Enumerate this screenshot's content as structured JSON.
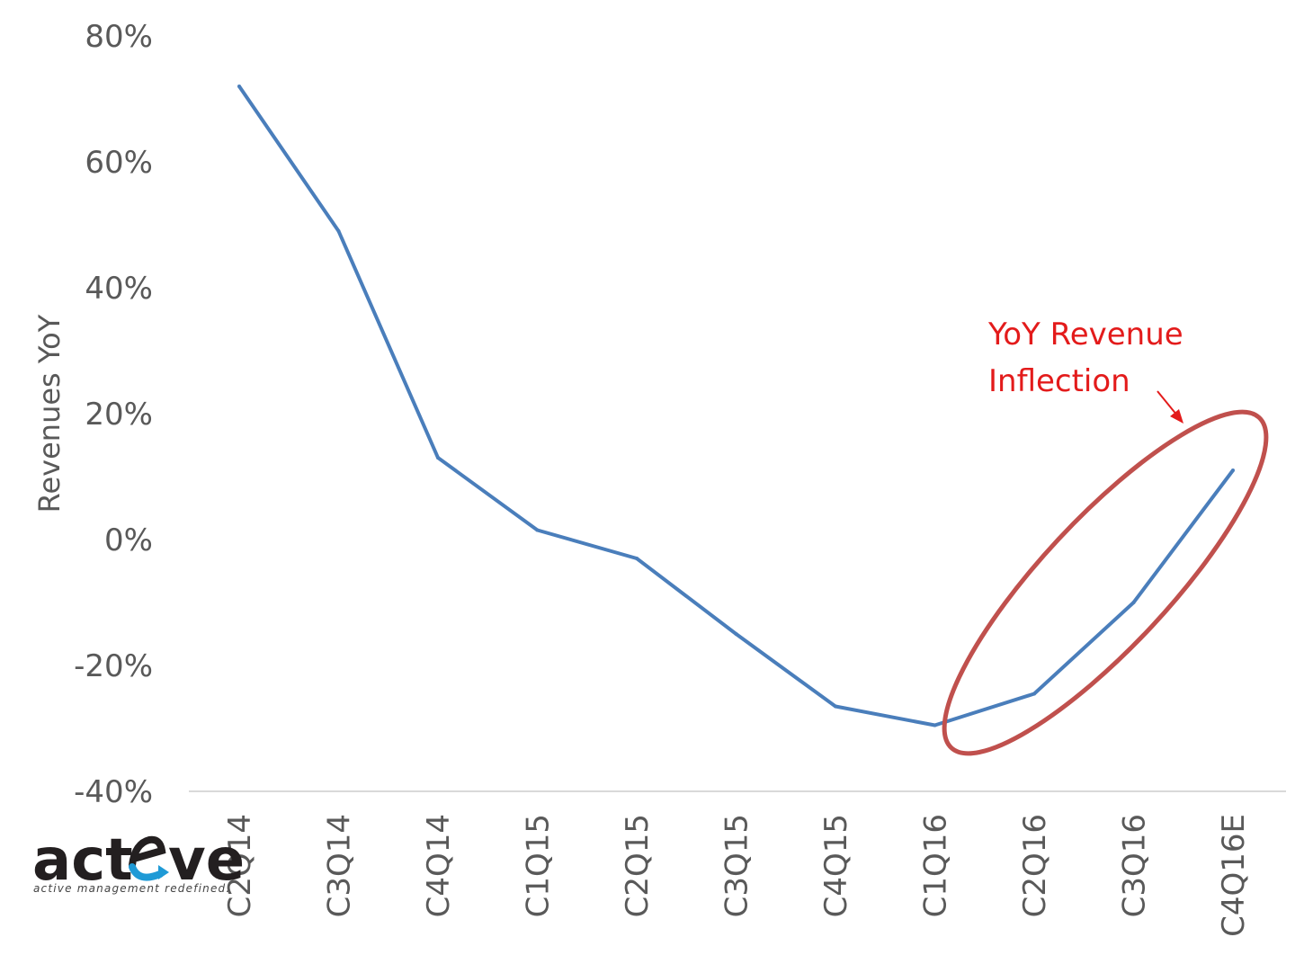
{
  "chart_data": {
    "type": "line",
    "categories": [
      "C2Q14",
      "C3Q14",
      "C4Q14",
      "C1Q15",
      "C2Q15",
      "C3Q15",
      "C4Q15",
      "C1Q16",
      "C2Q16",
      "C3Q16",
      "C4Q16E"
    ],
    "series": [
      {
        "values": [
          72,
          49,
          13,
          1.5,
          -3,
          -15,
          -26.5,
          -29.5,
          -24.5,
          -10,
          11
        ]
      }
    ],
    "ylabel": "Revenues YoY",
    "ylim": [
      -40,
      80
    ],
    "yticks": [
      -40,
      -20,
      0,
      20,
      40,
      60,
      80
    ],
    "ytick_labels": [
      "-40%",
      "-20%",
      "0%",
      "20%",
      "40%",
      "60%",
      "80%"
    ],
    "grid": false,
    "colors": {
      "line": "#4a7ebb",
      "annotation": "#e31b1b",
      "ellipse": "#c0504d",
      "axis": "#d9d9d9"
    },
    "annotation": {
      "line1": "YoY Revenue",
      "line2": "Inflection"
    }
  },
  "logo": {
    "text_left": "act",
    "text_right": "ve",
    "tagline": "active management redefined."
  }
}
